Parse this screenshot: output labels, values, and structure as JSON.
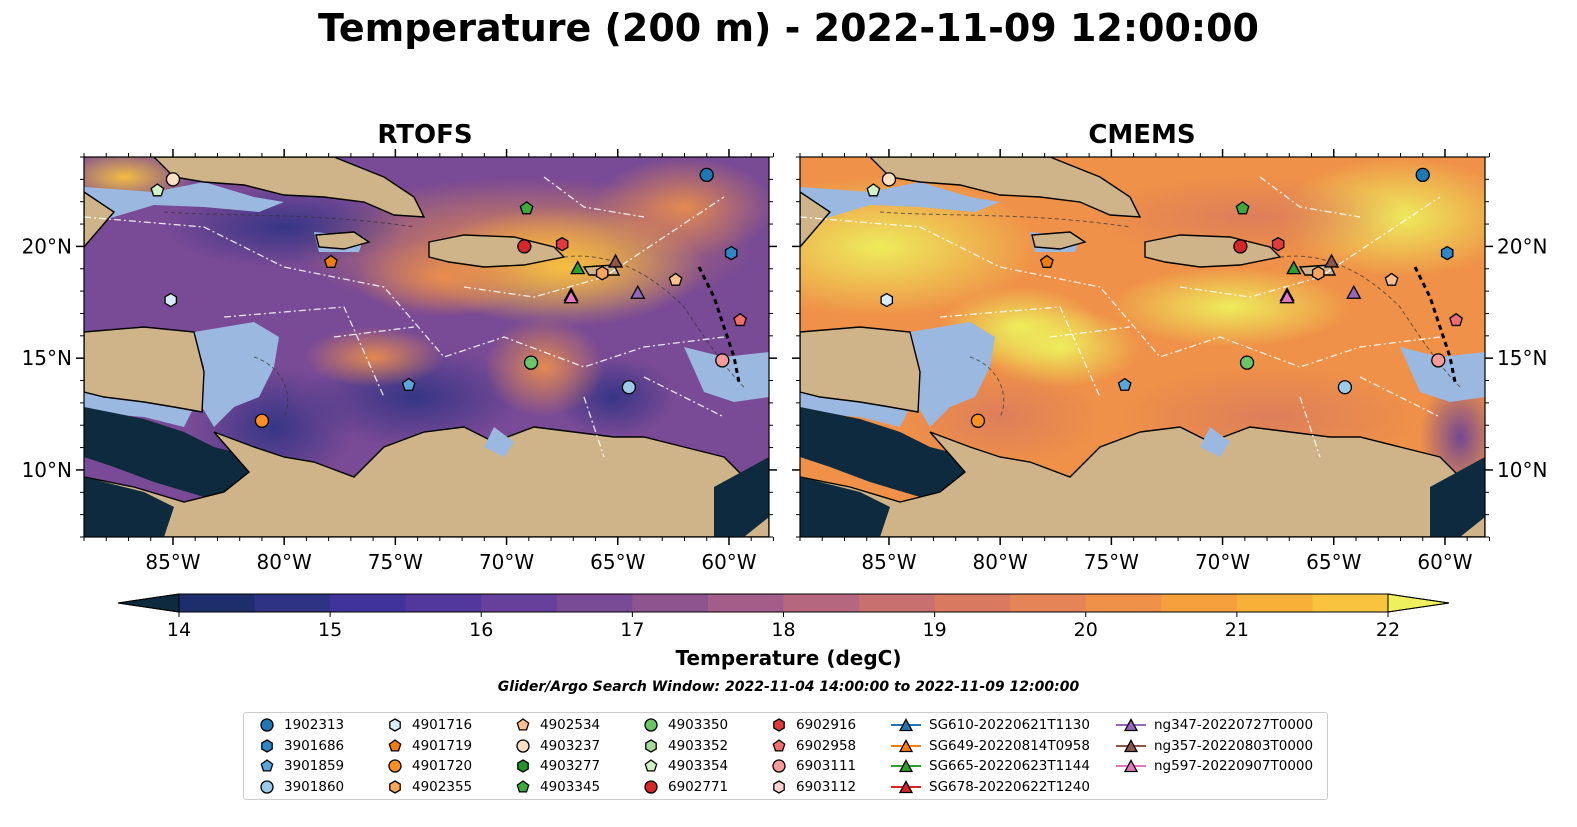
{
  "title": "Temperature (200 m) - 2022-11-09 12:00:00",
  "panels": [
    {
      "id": "rtofs",
      "title": "RTOFS"
    },
    {
      "id": "cmems",
      "title": "CMEMS"
    }
  ],
  "axes": {
    "lon_ticks": [
      "85°W",
      "80°W",
      "75°W",
      "70°W",
      "65°W",
      "60°W"
    ],
    "lat_ticks": [
      "20°N",
      "15°N",
      "10°N"
    ],
    "lon_range": [
      -89,
      -58.2
    ],
    "lat_range": [
      7,
      24
    ]
  },
  "colorbar": {
    "label": "Temperature (degC)",
    "ticks": [
      "14",
      "15",
      "16",
      "17",
      "18",
      "19",
      "20",
      "21",
      "22"
    ],
    "range": [
      14,
      22
    ],
    "extend": "both",
    "colors": [
      "#0e2a3e",
      "#15294f",
      "#1e2d6c",
      "#2f3384",
      "#40349b",
      "#52379d",
      "#66409a",
      "#794a95",
      "#8e5490",
      "#a25e88",
      "#b66780",
      "#c8706f",
      "#d87960",
      "#e58456",
      "#ef9148",
      "#f6a03d",
      "#f9b038",
      "#f8c33f",
      "#f1d74b",
      "#eef15d"
    ]
  },
  "search_window": "Glider/Argo Search Window: 2022-11-04 14:00:00 to 2022-11-09 12:00:00",
  "legend": {
    "columns": [
      [
        {
          "label": "1902313",
          "marker": "circle",
          "color": "#1f77b4"
        },
        {
          "label": "3901686",
          "marker": "hexagon",
          "color": "#2f86c9"
        },
        {
          "label": "3901859",
          "marker": "pentagon",
          "color": "#5aa6dc"
        },
        {
          "label": "3901860",
          "marker": "circle",
          "color": "#9ecae9"
        }
      ],
      [
        {
          "label": "4901716",
          "marker": "hexagon",
          "color": "#d9ecf7"
        },
        {
          "label": "4901719",
          "marker": "pentagon",
          "color": "#f07d0e"
        },
        {
          "label": "4901720",
          "marker": "circle",
          "color": "#ff8f25"
        },
        {
          "label": "4902355",
          "marker": "hexagon",
          "color": "#fda55a"
        }
      ],
      [
        {
          "label": "4902534",
          "marker": "pentagon",
          "color": "#fdc08c"
        },
        {
          "label": "4903237",
          "marker": "circle",
          "color": "#ffe0c2"
        },
        {
          "label": "4903277",
          "marker": "hexagon",
          "color": "#21932b"
        },
        {
          "label": "4903345",
          "marker": "pentagon",
          "color": "#3daa3c"
        }
      ],
      [
        {
          "label": "4903350",
          "marker": "circle",
          "color": "#6cc466"
        },
        {
          "label": "4903352",
          "marker": "hexagon",
          "color": "#a5dc98"
        },
        {
          "label": "4903354",
          "marker": "pentagon",
          "color": "#d2f2c8"
        },
        {
          "label": "6902771",
          "marker": "circle",
          "color": "#d62728"
        }
      ],
      [
        {
          "label": "6902916",
          "marker": "hexagon",
          "color": "#e23a3b"
        },
        {
          "label": "6902958",
          "marker": "pentagon",
          "color": "#f26d6d"
        },
        {
          "label": "6903111",
          "marker": "circle",
          "color": "#f89a9a"
        },
        {
          "label": "6903112",
          "marker": "hexagon",
          "color": "#ffd0d0"
        }
      ],
      [
        {
          "label": "SG610-20220621T1130",
          "marker": "triangle-line",
          "color": "#1f77b4"
        },
        {
          "label": "SG649-20220814T0958",
          "marker": "triangle-line",
          "color": "#ff7f0e"
        },
        {
          "label": "SG665-20220623T1144",
          "marker": "triangle-line",
          "color": "#2ca02c"
        },
        {
          "label": "SG678-20220622T1240",
          "marker": "triangle-line",
          "color": "#d62728"
        }
      ],
      [
        {
          "label": "ng347-20220727T0000",
          "marker": "triangle-line",
          "color": "#9467bd"
        },
        {
          "label": "ng357-20220803T0000",
          "marker": "triangle-line",
          "color": "#8c564b"
        },
        {
          "label": "ng597-20220907T0000",
          "marker": "triangle-line",
          "color": "#e377c2"
        }
      ]
    ]
  },
  "floats": [
    {
      "id": "1902313",
      "lon": -61.0,
      "lat": 23.2
    },
    {
      "id": "4903237",
      "lon": -85.0,
      "lat": 23.0
    },
    {
      "id": "4903354",
      "lon": -85.7,
      "lat": 22.5
    },
    {
      "id": "4903345",
      "lon": -69.1,
      "lat": 21.7
    },
    {
      "id": "6902916",
      "lon": -67.5,
      "lat": 20.1
    },
    {
      "id": "6902771",
      "lon": -69.2,
      "lat": 20.0
    },
    {
      "id": "3901686",
      "lon": -59.9,
      "lat": 19.7
    },
    {
      "id": "4901719",
      "lon": -77.9,
      "lat": 19.3
    },
    {
      "id": "ng357-20220803T0000",
      "lon": -65.1,
      "lat": 19.3
    },
    {
      "id": "SG665-20220623T1144",
      "lon": -66.8,
      "lat": 19.0
    },
    {
      "id": "4902355",
      "lon": -65.7,
      "lat": 18.8
    },
    {
      "id": "4902534",
      "lon": -62.4,
      "lat": 18.5
    },
    {
      "id": "ng347-20220727T0000",
      "lon": -64.1,
      "lat": 17.9
    },
    {
      "id": "SG678-20220622T1240",
      "lon": -67.1,
      "lat": 17.8
    },
    {
      "id": "ng597-20220907T0000",
      "lon": -67.1,
      "lat": 17.7
    },
    {
      "id": "4901716",
      "lon": -85.1,
      "lat": 17.6
    },
    {
      "id": "6902958",
      "lon": -59.5,
      "lat": 16.7
    },
    {
      "id": "6903111",
      "lon": -60.3,
      "lat": 14.9
    },
    {
      "id": "4903350",
      "lon": -68.9,
      "lat": 14.8
    },
    {
      "id": "3901859",
      "lon": -74.4,
      "lat": 13.8
    },
    {
      "id": "3901860",
      "lon": -64.5,
      "lat": 13.7
    },
    {
      "id": "4901720",
      "lon": -81.0,
      "lat": 12.2
    }
  ]
}
